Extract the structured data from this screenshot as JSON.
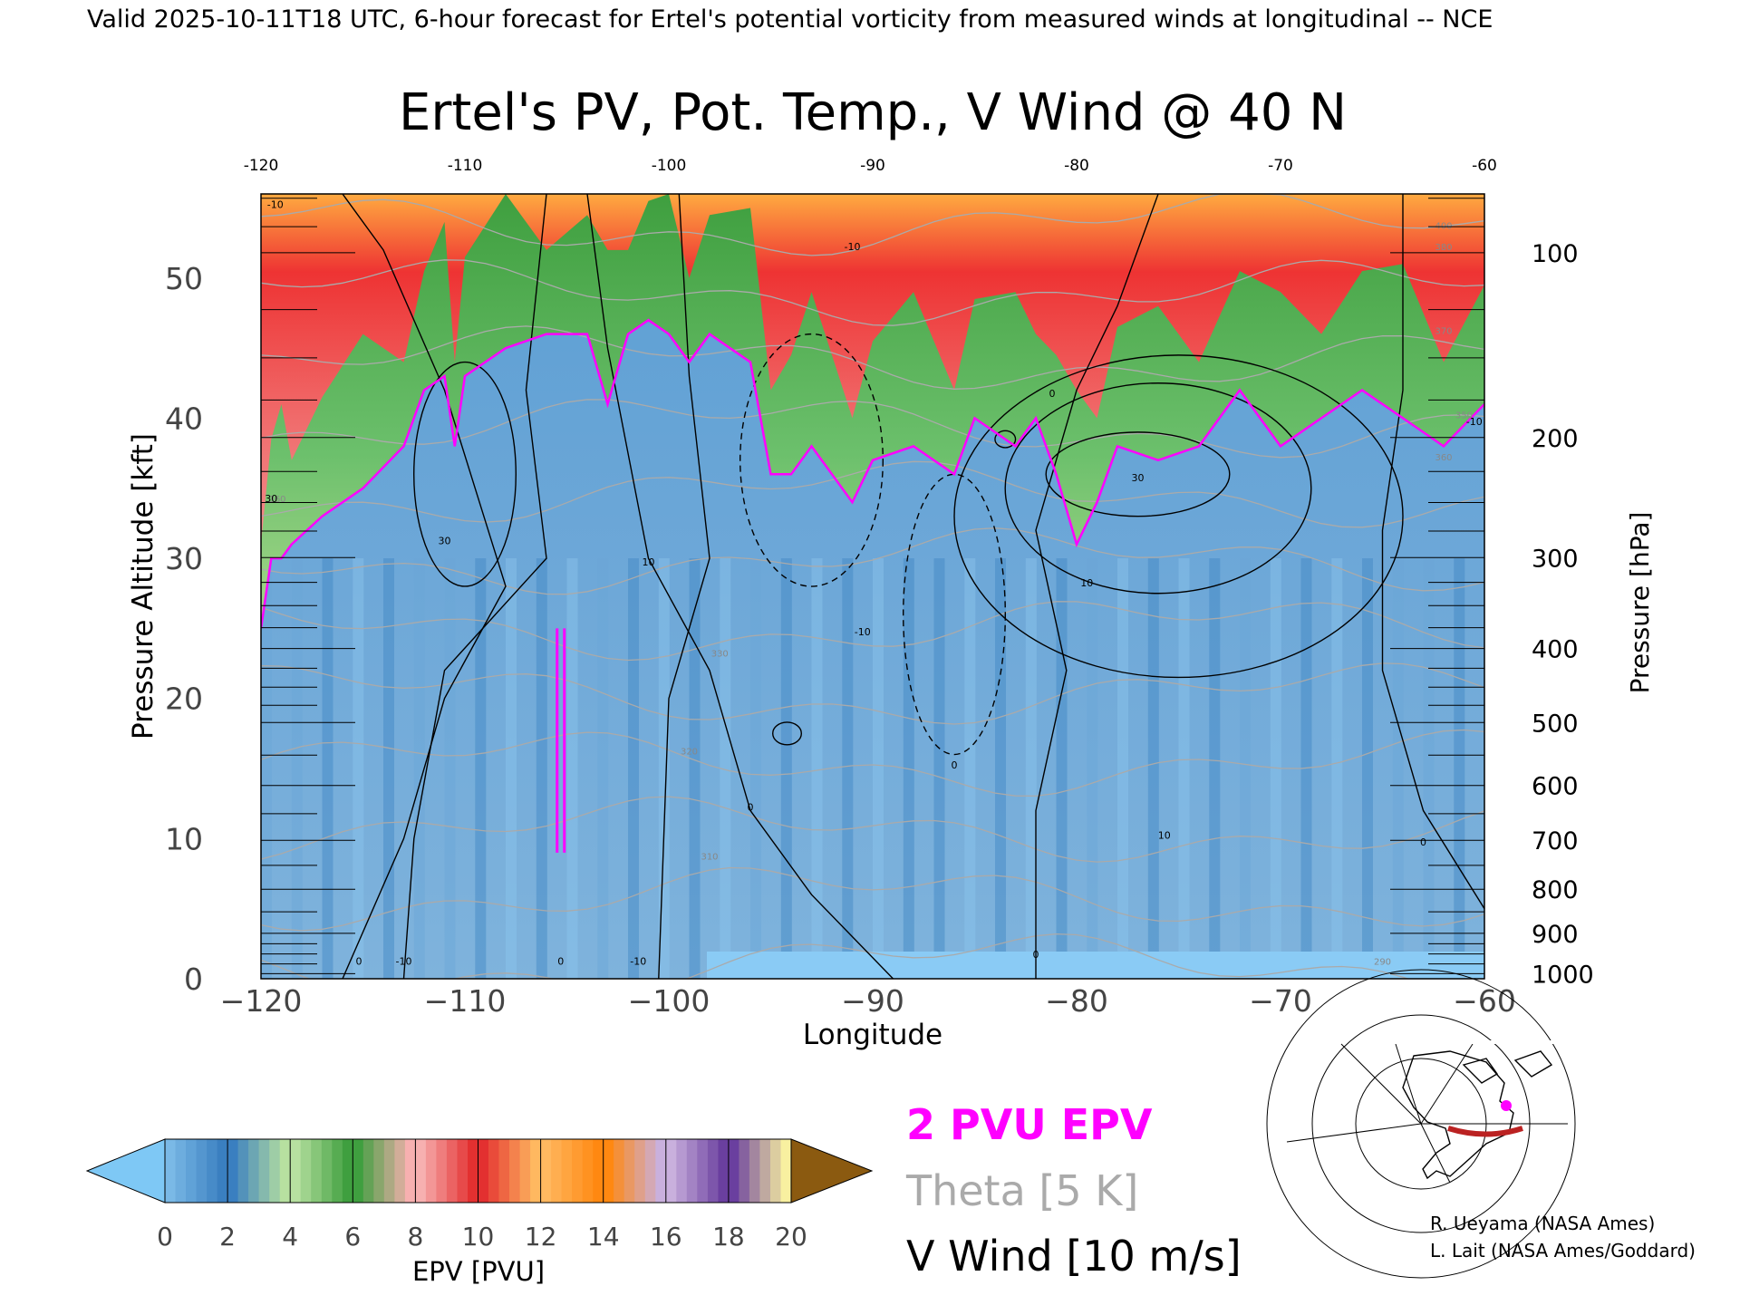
{
  "header": {
    "valid_line": "Valid 2025-10-11T18 UTC, 6-hour forecast for Ertel's potential vorticity from measured winds at longitudinal -- NCE"
  },
  "chart_data": {
    "type": "heatmap",
    "title": "Ertel's PV, Pot. Temp., V Wind @ 40 N",
    "xlabel": "Longitude",
    "ylabel": "Pressure Altitude [kft]",
    "y2label": "Pressure [hPa]",
    "xlim": [
      -120,
      -60
    ],
    "ylim": [
      0,
      56
    ],
    "x_ticks": [
      -120,
      -110,
      -100,
      -90,
      -80,
      -70,
      -60
    ],
    "x_tick_labels": [
      "−120",
      "−110",
      "−100",
      "−90",
      "−80",
      "−70",
      "−60"
    ],
    "top_tick_labels": [
      "-120",
      "-110",
      "-100",
      "-90",
      "-80",
      "-70",
      "-60"
    ],
    "y_ticks": [
      0,
      10,
      20,
      30,
      40,
      50
    ],
    "y_tick_labels": [
      "0",
      "10",
      "20",
      "30",
      "40",
      "50"
    ],
    "pressure_levels": [
      100,
      200,
      300,
      400,
      500,
      600,
      700,
      800,
      900,
      1000
    ],
    "pressure_labels": [
      "100",
      "200",
      "300",
      "400",
      "500",
      "600",
      "700",
      "800",
      "900",
      "1000"
    ],
    "pressure_minor_levels": [
      70,
      80,
      90,
      125,
      150,
      175,
      225,
      250,
      275,
      325,
      350,
      375,
      425,
      450,
      475,
      550,
      650,
      750,
      850,
      925,
      950,
      975
    ],
    "tropopause_alt_kft": [
      [
        -120,
        25
      ],
      [
        -119.5,
        30
      ],
      [
        -119,
        30
      ],
      [
        -118.5,
        31
      ],
      [
        -117,
        33
      ],
      [
        -115,
        35
      ],
      [
        -113,
        38
      ],
      [
        -112,
        42
      ],
      [
        -111,
        43
      ],
      [
        -110.5,
        38
      ],
      [
        -110,
        43
      ],
      [
        -108,
        45
      ],
      [
        -106,
        46
      ],
      [
        -104,
        46
      ],
      [
        -103,
        41
      ],
      [
        -102,
        46
      ],
      [
        -101,
        47
      ],
      [
        -100,
        46
      ],
      [
        -99,
        44
      ],
      [
        -98,
        46
      ],
      [
        -96,
        44
      ],
      [
        -95,
        36
      ],
      [
        -94,
        36
      ],
      [
        -93,
        38
      ],
      [
        -91,
        34
      ],
      [
        -90,
        37
      ],
      [
        -88,
        38
      ],
      [
        -86,
        36
      ],
      [
        -85,
        40
      ],
      [
        -83,
        38
      ],
      [
        -82,
        40
      ],
      [
        -81,
        36
      ],
      [
        -80,
        31
      ],
      [
        -79,
        34
      ],
      [
        -78,
        38
      ],
      [
        -76,
        37
      ],
      [
        -74,
        38
      ],
      [
        -72,
        42
      ],
      [
        -70,
        38
      ],
      [
        -68,
        40
      ],
      [
        -66,
        42
      ],
      [
        -64,
        40
      ],
      [
        -62,
        38
      ],
      [
        -60,
        41
      ]
    ],
    "thin_pv_column": {
      "lon": -105.3,
      "alt_range_kft": [
        9,
        25
      ]
    },
    "theta_levels_k": [
      290,
      300,
      310,
      320,
      330,
      340,
      350,
      360,
      370,
      380,
      390,
      400
    ],
    "theta_label_positions": [
      {
        "label": "330",
        "lon": -97.5,
        "alt": 23
      },
      {
        "label": "320",
        "lon": -99,
        "alt": 16
      },
      {
        "label": "310",
        "lon": -98,
        "alt": 8.5
      },
      {
        "label": "290",
        "lon": -65,
        "alt": 1
      },
      {
        "label": "350",
        "lon": -61,
        "alt": 40
      },
      {
        "label": "360",
        "lon": -62,
        "alt": 37
      },
      {
        "label": "370",
        "lon": -62,
        "alt": 46
      },
      {
        "label": "380",
        "lon": -62,
        "alt": 52
      },
      {
        "label": "400",
        "lon": -62,
        "alt": 53.5
      },
      {
        "label": "360",
        "lon": -119.2,
        "alt": 34
      }
    ],
    "v_wind_contour_labels": [
      {
        "label": "30",
        "lon": -119.5,
        "alt": 34
      },
      {
        "label": "30",
        "lon": -111,
        "alt": 31
      },
      {
        "label": "10",
        "lon": -101,
        "alt": 29.5
      },
      {
        "label": "-10",
        "lon": -90.5,
        "alt": 24.5
      },
      {
        "label": "-10",
        "lon": -91,
        "alt": 52
      },
      {
        "label": "0",
        "lon": -86,
        "alt": 15
      },
      {
        "label": "0",
        "lon": -96,
        "alt": 12
      },
      {
        "label": "0",
        "lon": -81.2,
        "alt": 41.5
      },
      {
        "label": "30",
        "lon": -77,
        "alt": 35.5
      },
      {
        "label": "10",
        "lon": -79.5,
        "alt": 28
      },
      {
        "label": "10",
        "lon": -75.7,
        "alt": 10
      },
      {
        "label": "0",
        "lon": -63,
        "alt": 9.5
      },
      {
        "label": "-10",
        "lon": -60.5,
        "alt": 39.5
      },
      {
        "label": "0",
        "lon": -115.2,
        "alt": 1
      },
      {
        "label": "-10",
        "lon": -113,
        "alt": 1
      },
      {
        "label": "0",
        "lon": -105.3,
        "alt": 1
      },
      {
        "label": "-10",
        "lon": -101.5,
        "alt": 1
      },
      {
        "label": "0",
        "lon": -82,
        "alt": 1.5
      },
      {
        "label": "-10",
        "lon": -119.3,
        "alt": 55
      }
    ],
    "colorbar": {
      "label": "EPV [PVU]",
      "min": 0,
      "max": 20,
      "tick_labels": [
        "0",
        "2",
        "4",
        "6",
        "8",
        "10",
        "12",
        "14",
        "16",
        "18",
        "20"
      ],
      "under_color": "#7ec8f5",
      "over_color": "#8b5a10"
    },
    "legend": {
      "epv_line": "2 PVU EPV",
      "theta_line": "Theta [5 K]",
      "wind_line": "V Wind [10 m/s]"
    }
  },
  "credits": {
    "line1": "R. Ueyama (NASA Ames)",
    "line2": "L. Lait (NASA Ames/Goddard)"
  },
  "colors": {
    "tropopause": "#ff00ff",
    "theta": "#aaaaaa",
    "wind": "#000000",
    "low_pv": "#7ab6e0",
    "jet_band": "#bb2222"
  }
}
